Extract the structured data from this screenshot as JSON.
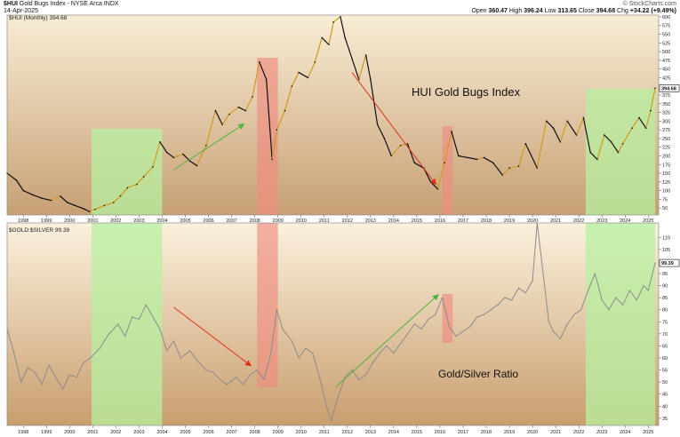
{
  "header": {
    "symbol": "$HUI",
    "name": "Gold Bugs Index - NYSE Arca INDX",
    "date": "14-Apr-2025",
    "ohlc": [
      {
        "label": "Open",
        "value": "360.47"
      },
      {
        "label": "High",
        "value": "396.24"
      },
      {
        "label": "Low",
        "value": "313.65"
      },
      {
        "label": "Close",
        "value": "394.68"
      },
      {
        "label": "Chg",
        "value": "+34.22 (+9.49%)"
      }
    ],
    "brand": "© StockCharts.com"
  },
  "colors": {
    "upper_bg_top": "#f8edd6",
    "upper_bg_bottom": "#c7a074",
    "lower_bg_top": "#fbf1dd",
    "lower_bg_bottom": "#c89e6e",
    "green_band": "#b7f0a0",
    "red_band": "#f08c80",
    "hui_down": "#111111",
    "hui_up": "#d19a1c",
    "ratio_line": "#8c8c8c",
    "arrow_green": "#4cb43c",
    "arrow_red": "#e0301c"
  },
  "chart_data": [
    {
      "type": "line",
      "legend_label": "$HUI (Monthly) 394.68",
      "annotation": "HUI Gold Bugs Index",
      "last_value_label": "394.68",
      "x_ticks": [
        "1998",
        "1999",
        "2000",
        "2001",
        "2002",
        "2003",
        "2004",
        "2005",
        "2006",
        "2007",
        "2008",
        "2009",
        "2010",
        "2011",
        "2012",
        "2013",
        "2014",
        "2015",
        "2016",
        "2017",
        "2018",
        "2019",
        "2020",
        "2021",
        "2022",
        "2023",
        "2024",
        "2025"
      ],
      "y_ticks": [
        "50",
        "75",
        "100",
        "125",
        "150",
        "175",
        "200",
        "225",
        "250",
        "275",
        "300",
        "325",
        "350",
        "375",
        "425",
        "450",
        "475",
        "500",
        "525",
        "550",
        "575",
        "600"
      ],
      "ylim": [
        30,
        605
      ],
      "series": [
        {
          "values": [
            [
              1997.3,
              150
            ],
            [
              1997.7,
              130
            ],
            [
              1998.0,
              100
            ],
            [
              1998.4,
              88
            ],
            [
              1998.8,
              78
            ],
            [
              1999.2,
              72
            ],
            [
              1999.6,
              84
            ],
            [
              1999.9,
              66
            ],
            [
              2000.2,
              58
            ],
            [
              2000.6,
              48
            ],
            [
              2000.85,
              40
            ],
            [
              2001.1,
              46
            ],
            [
              2001.5,
              57
            ],
            [
              2001.9,
              66
            ],
            [
              2002.2,
              85
            ],
            [
              2002.5,
              108
            ],
            [
              2002.9,
              118
            ],
            [
              2003.2,
              140
            ],
            [
              2003.6,
              168
            ],
            [
              2003.9,
              240
            ],
            [
              2004.2,
              210
            ],
            [
              2004.5,
              195
            ],
            [
              2004.9,
              205
            ],
            [
              2005.2,
              185
            ],
            [
              2005.5,
              172
            ],
            [
              2005.9,
              230
            ],
            [
              2006.3,
              330
            ],
            [
              2006.6,
              290
            ],
            [
              2006.9,
              320
            ],
            [
              2007.3,
              340
            ],
            [
              2007.6,
              330
            ],
            [
              2007.9,
              370
            ],
            [
              2008.2,
              470
            ],
            [
              2008.5,
              420
            ],
            [
              2008.75,
              190
            ],
            [
              2008.95,
              275
            ],
            [
              2009.3,
              330
            ],
            [
              2009.6,
              400
            ],
            [
              2009.9,
              440
            ],
            [
              2010.3,
              425
            ],
            [
              2010.6,
              470
            ],
            [
              2010.9,
              540
            ],
            [
              2011.2,
              520
            ],
            [
              2011.4,
              585
            ],
            [
              2011.7,
              600
            ],
            [
              2011.9,
              540
            ],
            [
              2012.2,
              480
            ],
            [
              2012.5,
              420
            ],
            [
              2012.8,
              490
            ],
            [
              2013.0,
              420
            ],
            [
              2013.3,
              290
            ],
            [
              2013.6,
              250
            ],
            [
              2013.9,
              200
            ],
            [
              2014.3,
              230
            ],
            [
              2014.6,
              235
            ],
            [
              2014.9,
              180
            ],
            [
              2015.3,
              165
            ],
            [
              2015.6,
              125
            ],
            [
              2015.9,
              105
            ],
            [
              2016.2,
              180
            ],
            [
              2016.5,
              270
            ],
            [
              2016.8,
              200
            ],
            [
              2017.2,
              195
            ],
            [
              2017.6,
              190
            ],
            [
              2017.9,
              195
            ],
            [
              2018.3,
              180
            ],
            [
              2018.7,
              145
            ],
            [
              2019.0,
              165
            ],
            [
              2019.4,
              170
            ],
            [
              2019.7,
              235
            ],
            [
              2020.2,
              165
            ],
            [
              2020.6,
              300
            ],
            [
              2020.9,
              280
            ],
            [
              2021.2,
              240
            ],
            [
              2021.5,
              300
            ],
            [
              2021.9,
              260
            ],
            [
              2022.2,
              310
            ],
            [
              2022.5,
              210
            ],
            [
              2022.8,
              190
            ],
            [
              2023.1,
              260
            ],
            [
              2023.4,
              240
            ],
            [
              2023.7,
              210
            ],
            [
              2023.9,
              235
            ],
            [
              2024.3,
              280
            ],
            [
              2024.6,
              310
            ],
            [
              2024.9,
              280
            ],
            [
              2025.1,
              330
            ],
            [
              2025.3,
              394.68
            ]
          ]
        }
      ]
    },
    {
      "type": "line",
      "legend_label": "$GOLD:$SILVER 99.39",
      "annotation": "Gold/Silver Ratio",
      "last_value_label": "99.39",
      "x_ticks": [
        "1998",
        "1999",
        "2000",
        "2001",
        "2002",
        "2003",
        "2004",
        "2005",
        "2006",
        "2007",
        "2008",
        "2009",
        "2010",
        "2011",
        "2012",
        "2013",
        "2014",
        "2015",
        "2016",
        "2017",
        "2018",
        "2019",
        "2020",
        "2021",
        "2022",
        "2023",
        "2024",
        "2025"
      ],
      "y_ticks": [
        "35",
        "40",
        "45",
        "50",
        "55",
        "60",
        "65",
        "70",
        "75",
        "80",
        "85",
        "90",
        "95",
        "100",
        "105",
        "110"
      ],
      "ylim": [
        32,
        116
      ],
      "series": [
        {
          "values": [
            [
              1997.3,
              72
            ],
            [
              1997.6,
              62
            ],
            [
              1997.9,
              50
            ],
            [
              1998.2,
              56
            ],
            [
              1998.5,
              54
            ],
            [
              1998.8,
              49
            ],
            [
              1999.1,
              57
            ],
            [
              1999.4,
              52
            ],
            [
              1999.7,
              47
            ],
            [
              2000.0,
              53
            ],
            [
              2000.3,
              52
            ],
            [
              2000.6,
              58
            ],
            [
              2000.9,
              60
            ],
            [
              2001.3,
              64
            ],
            [
              2001.7,
              70
            ],
            [
              2002.1,
              74
            ],
            [
              2002.4,
              69
            ],
            [
              2002.7,
              77
            ],
            [
              2003.0,
              76
            ],
            [
              2003.3,
              82
            ],
            [
              2003.6,
              77
            ],
            [
              2003.9,
              72
            ],
            [
              2004.2,
              63
            ],
            [
              2004.5,
              67
            ],
            [
              2004.8,
              60
            ],
            [
              2005.2,
              63
            ],
            [
              2005.5,
              59
            ],
            [
              2005.9,
              55
            ],
            [
              2006.2,
              54
            ],
            [
              2006.5,
              51
            ],
            [
              2006.8,
              49
            ],
            [
              2007.2,
              52
            ],
            [
              2007.5,
              49
            ],
            [
              2007.8,
              53
            ],
            [
              2008.1,
              55
            ],
            [
              2008.4,
              51
            ],
            [
              2008.7,
              62
            ],
            [
              2008.95,
              80
            ],
            [
              2009.2,
              72
            ],
            [
              2009.6,
              67
            ],
            [
              2009.9,
              60
            ],
            [
              2010.2,
              64
            ],
            [
              2010.5,
              62
            ],
            [
              2010.8,
              52
            ],
            [
              2011.1,
              40
            ],
            [
              2011.3,
              34
            ],
            [
              2011.6,
              44
            ],
            [
              2011.9,
              52
            ],
            [
              2012.2,
              55
            ],
            [
              2012.5,
              51
            ],
            [
              2012.8,
              53
            ],
            [
              2013.1,
              58
            ],
            [
              2013.4,
              62
            ],
            [
              2013.7,
              65
            ],
            [
              2014.0,
              62
            ],
            [
              2014.3,
              66
            ],
            [
              2014.6,
              70
            ],
            [
              2014.9,
              74
            ],
            [
              2015.2,
              72
            ],
            [
              2015.5,
              76
            ],
            [
              2015.8,
              78
            ],
            [
              2016.1,
              85
            ],
            [
              2016.4,
              73
            ],
            [
              2016.7,
              69
            ],
            [
              2017.0,
              71
            ],
            [
              2017.3,
              73
            ],
            [
              2017.6,
              77
            ],
            [
              2017.9,
              78
            ],
            [
              2018.2,
              80
            ],
            [
              2018.5,
              82
            ],
            [
              2018.8,
              85
            ],
            [
              2019.1,
              84
            ],
            [
              2019.4,
              89
            ],
            [
              2019.7,
              87
            ],
            [
              2020.0,
              92
            ],
            [
              2020.2,
              116
            ],
            [
              2020.4,
              100
            ],
            [
              2020.7,
              75
            ],
            [
              2020.9,
              71
            ],
            [
              2021.2,
              68
            ],
            [
              2021.5,
              74
            ],
            [
              2021.8,
              78
            ],
            [
              2022.1,
              80
            ],
            [
              2022.4,
              88
            ],
            [
              2022.7,
              95
            ],
            [
              2023.0,
              84
            ],
            [
              2023.3,
              80
            ],
            [
              2023.6,
              85
            ],
            [
              2023.9,
              82
            ],
            [
              2024.2,
              88
            ],
            [
              2024.5,
              84
            ],
            [
              2024.8,
              90
            ],
            [
              2025.0,
              88
            ],
            [
              2025.3,
              99.39
            ]
          ]
        }
      ]
    }
  ]
}
